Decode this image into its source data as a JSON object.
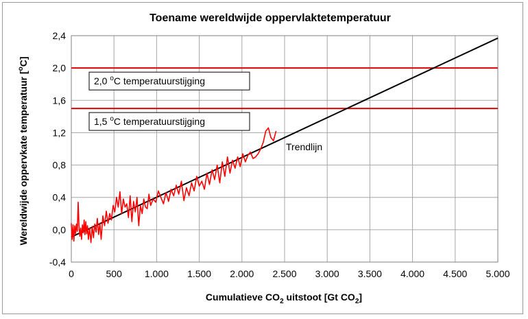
{
  "chart_data": {
    "type": "line",
    "title": "Toename wereldwijde oppervlaktetemperatuur",
    "xlabel": {
      "prefix": "Cumulatieve CO",
      "sub": "2",
      "middle": " uitstoot [Gt CO",
      "sub2": "2",
      "suffix": "]"
    },
    "ylabel": {
      "prefix": "Wereldwijde oppervkate temperatuur [",
      "sup": "o",
      "suffix": "C]"
    },
    "xlim": [
      0,
      5000
    ],
    "ylim": [
      -0.4,
      2.4
    ],
    "xticks": [
      0,
      500,
      1000,
      1500,
      2000,
      2500,
      3000,
      3500,
      4000,
      4500,
      5000
    ],
    "xtick_labels": [
      "0",
      "500",
      "1.000",
      "1.500",
      "2.000",
      "2.500",
      "3.000",
      "3.500",
      "4.000",
      "4.500",
      "5.000"
    ],
    "yticks": [
      -0.4,
      0.0,
      0.4,
      0.8,
      1.2,
      1.6,
      2.0,
      2.4
    ],
    "ytick_labels": [
      "-0,4",
      "0,0",
      "0,4",
      "0,8",
      "1,2",
      "1,6",
      "2,0",
      "2,4"
    ],
    "grid": true,
    "colors": {
      "observed": "#ff0000",
      "trend": "#000000",
      "threshold": "#e00000",
      "grid": "#a6a6a6"
    },
    "hlines": [
      {
        "y": 2.0,
        "label_prefix": "2,0 ",
        "label_sup": "o",
        "label_suffix": "C temperatuurstijging"
      },
      {
        "y": 1.5,
        "label_prefix": "1,5 ",
        "label_sup": "o",
        "label_suffix": "C temperatuurstijging"
      }
    ],
    "trend": {
      "label": "Trendlijn",
      "x": [
        0,
        5000
      ],
      "y": [
        -0.09,
        2.37
      ]
    },
    "observed": {
      "x": [
        0,
        10,
        20,
        30,
        40,
        50,
        60,
        70,
        80,
        90,
        100,
        110,
        120,
        130,
        140,
        150,
        160,
        170,
        180,
        190,
        200,
        215,
        230,
        245,
        260,
        275,
        290,
        305,
        320,
        335,
        350,
        370,
        390,
        410,
        430,
        450,
        470,
        490,
        510,
        530,
        550,
        570,
        590,
        610,
        630,
        650,
        670,
        690,
        710,
        730,
        750,
        770,
        790,
        810,
        830,
        850,
        870,
        890,
        910,
        930,
        960,
        990,
        1020,
        1050,
        1080,
        1110,
        1140,
        1170,
        1200,
        1230,
        1260,
        1290,
        1320,
        1350,
        1380,
        1410,
        1440,
        1470,
        1500,
        1530,
        1560,
        1590,
        1620,
        1650,
        1680,
        1710,
        1740,
        1770,
        1800,
        1830,
        1860,
        1890,
        1920,
        1950,
        1980,
        2010,
        2040,
        2070,
        2100,
        2130,
        2160,
        2190,
        2220,
        2250,
        2280,
        2310,
        2340,
        2370,
        2400
      ],
      "y": [
        0.08,
        -0.12,
        0.06,
        -0.14,
        0.05,
        -0.05,
        0.07,
        -0.02,
        0.34,
        0.05,
        -0.08,
        0.02,
        -0.12,
        0.06,
        -0.04,
        0.12,
        -0.06,
        0.1,
        -0.05,
        0.05,
        -0.12,
        0.02,
        -0.16,
        0.04,
        -0.1,
        0.07,
        -0.03,
        0.14,
        -0.06,
        0.08,
        -0.12,
        0.17,
        0.05,
        0.23,
        0.08,
        0.2,
        0.12,
        0.3,
        0.22,
        0.4,
        0.28,
        0.47,
        0.2,
        0.38,
        0.28,
        0.32,
        0.15,
        0.42,
        0.1,
        0.35,
        0.22,
        0.4,
        0.05,
        0.3,
        0.2,
        0.38,
        0.28,
        0.26,
        0.44,
        0.3,
        0.38,
        0.34,
        0.48,
        0.4,
        0.32,
        0.46,
        0.35,
        0.5,
        0.42,
        0.55,
        0.44,
        0.6,
        0.36,
        0.52,
        0.42,
        0.58,
        0.48,
        0.66,
        0.54,
        0.6,
        0.5,
        0.7,
        0.56,
        0.74,
        0.62,
        0.8,
        0.58,
        0.84,
        0.66,
        0.9,
        0.7,
        0.86,
        0.76,
        0.9,
        0.78,
        0.94,
        0.84,
        0.92,
        0.96,
        0.88,
        0.9,
        0.94,
        1.0,
        1.08,
        1.22,
        1.26,
        1.14,
        1.1,
        1.22
      ]
    }
  }
}
